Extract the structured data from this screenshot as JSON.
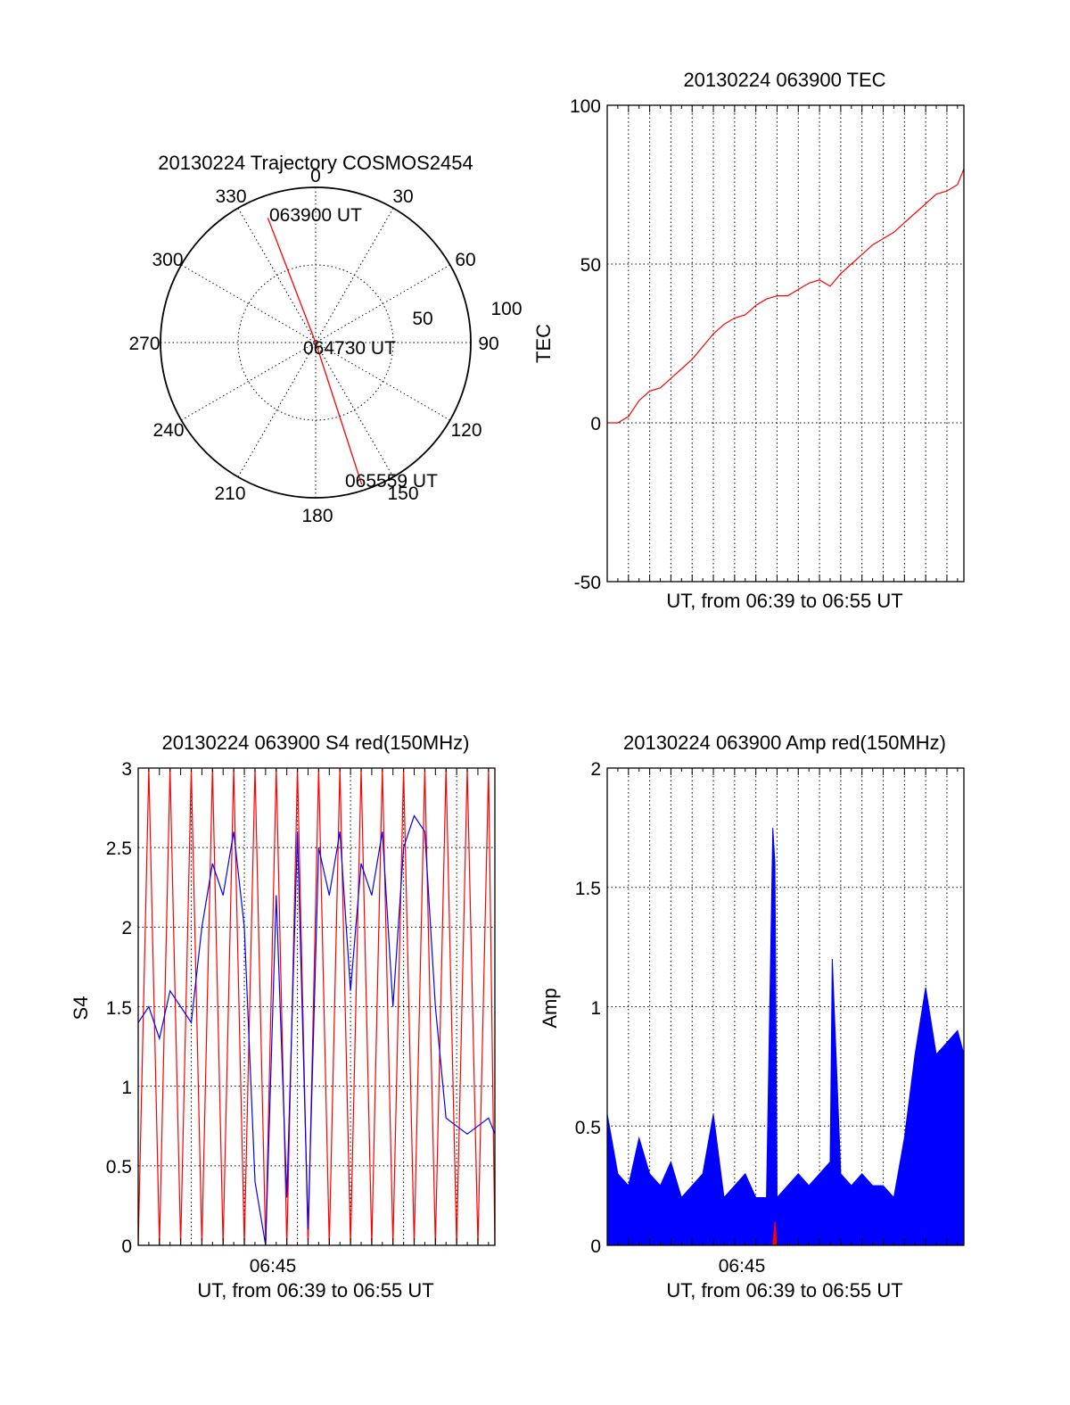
{
  "colors": {
    "red": "#ff0000",
    "blue": "#0000ff",
    "axis": "#000000",
    "background": "#ffffff"
  },
  "chart_data": [
    {
      "id": "trajectory",
      "type": "polar-trajectory",
      "title": "20130224 Trajectory COSMOS2454",
      "azimuth_labels": [
        "0",
        "30",
        "60",
        "90",
        "120",
        "150",
        "180",
        "210",
        "240",
        "270",
        "300",
        "330"
      ],
      "elevation_ring_labels": [
        "50",
        "100"
      ],
      "series": [
        {
          "color": "red",
          "points": [
            {
              "az": 339,
              "r": 86,
              "label": "063900 UT"
            },
            {
              "az": 0,
              "r": 0,
              "label": "064730 UT"
            },
            {
              "az": 162,
              "r": 96,
              "label": "065559 UT"
            }
          ]
        }
      ],
      "grid": true
    },
    {
      "id": "tec",
      "type": "line",
      "title": "20130224 063900 TEC",
      "xlabel": "UT, from 06:39 to 06:55 UT",
      "ylabel": "TEC",
      "xlim": [
        0,
        16.8
      ],
      "ylim": [
        -50,
        100
      ],
      "yticks": [
        "100",
        "50",
        "0",
        "-50"
      ],
      "grid": true,
      "series": [
        {
          "color": "red",
          "x": [
            0,
            0.5,
            1,
            1.5,
            2,
            2.5,
            3,
            3.5,
            4,
            4.5,
            5,
            5.5,
            6,
            6.5,
            7,
            7.5,
            8,
            8.5,
            9,
            9.5,
            10,
            10.5,
            11,
            11.5,
            12,
            12.5,
            13,
            13.5,
            14,
            14.5,
            15,
            15.5,
            16,
            16.5,
            16.8
          ],
          "y": [
            0,
            0,
            2,
            7,
            10,
            11,
            14,
            17,
            20,
            24,
            28,
            31,
            33,
            34,
            37,
            39,
            40,
            40,
            42,
            44,
            45,
            43,
            47,
            50,
            53,
            56,
            58,
            60,
            63,
            66,
            69,
            72,
            73,
            75,
            80
          ]
        }
      ]
    },
    {
      "id": "s4",
      "type": "line",
      "title": "20130224 063900 S4 red(150MHz)",
      "xlabel": "UT, from 06:39 to 06:55 UT",
      "ylabel": "S4",
      "xlim": [
        0,
        16.8
      ],
      "ylim": [
        0,
        3
      ],
      "xticks": [
        {
          "x": 6.5,
          "label": "06:45"
        }
      ],
      "yticks": [
        "3",
        "2.5",
        "2",
        "1.5",
        "1",
        "0.5",
        "0"
      ],
      "grid": true,
      "series": [
        {
          "color": "red",
          "x": [
            0,
            0.5,
            1,
            1.5,
            2,
            2.5,
            3,
            3.5,
            4,
            4.5,
            5,
            5.5,
            6,
            6.5,
            7,
            7.5,
            8,
            8.5,
            9,
            9.5,
            10,
            10.5,
            11,
            11.5,
            12,
            12.5,
            13,
            13.5,
            14,
            14.5,
            15,
            15.5,
            16,
            16.5,
            16.8
          ],
          "y": [
            0,
            3,
            0,
            3,
            0,
            3,
            0,
            3,
            0,
            3,
            0,
            3,
            0,
            3,
            0,
            3,
            0,
            3,
            0,
            3,
            0,
            3,
            0,
            3,
            0,
            3,
            0,
            3,
            0,
            3,
            0,
            3,
            0,
            3,
            0
          ]
        },
        {
          "color": "blue",
          "x": [
            0,
            0.5,
            1,
            1.5,
            2,
            2.5,
            3,
            3.5,
            4,
            4.5,
            5,
            5.5,
            6,
            6.5,
            7,
            7.5,
            8,
            8.5,
            9,
            9.5,
            10,
            10.5,
            11,
            11.5,
            12,
            12.5,
            13,
            13.5,
            14,
            14.5,
            15,
            15.5,
            16,
            16.5,
            16.8
          ],
          "y": [
            1.4,
            1.5,
            1.3,
            1.6,
            1.5,
            1.4,
            2.0,
            2.4,
            2.2,
            2.6,
            2.0,
            0.4,
            0.0,
            2.2,
            0.3,
            2.6,
            0.1,
            2.5,
            2.2,
            2.6,
            1.6,
            2.4,
            2.2,
            2.6,
            1.5,
            2.5,
            2.7,
            2.6,
            1.5,
            0.8,
            0.75,
            0.7,
            0.75,
            0.8,
            0.7
          ]
        }
      ]
    },
    {
      "id": "amp",
      "type": "line",
      "title": "20130224 063900 Amp red(150MHz)",
      "xlabel": "UT, from 06:39 to 06:55 UT",
      "ylabel": "Amp",
      "xlim": [
        0,
        16.8
      ],
      "ylim": [
        0,
        2
      ],
      "xticks": [
        {
          "x": 6.5,
          "label": "06:45"
        }
      ],
      "yticks": [
        "2",
        "1.5",
        "1",
        "0.5",
        "0"
      ],
      "grid": true,
      "series": [
        {
          "color": "blue",
          "x": [
            0,
            0.5,
            1,
            1.5,
            2,
            2.5,
            3,
            3.5,
            4,
            4.5,
            5,
            5.5,
            6,
            6.5,
            7,
            7.5,
            7.8,
            7.9,
            8,
            8.5,
            9,
            9.5,
            10,
            10.5,
            10.6,
            11,
            11.5,
            12,
            12.5,
            13,
            13.5,
            14,
            14.5,
            15,
            15.5,
            16,
            16.5,
            16.8
          ],
          "y": [
            0.55,
            0.3,
            0.25,
            0.45,
            0.3,
            0.25,
            0.35,
            0.2,
            0.25,
            0.3,
            0.55,
            0.2,
            0.25,
            0.3,
            0.2,
            0.2,
            1.75,
            1.6,
            0.2,
            0.25,
            0.3,
            0.25,
            0.3,
            0.35,
            1.2,
            0.3,
            0.25,
            0.3,
            0.25,
            0.25,
            0.2,
            0.45,
            0.8,
            1.08,
            0.8,
            0.85,
            0.9,
            0.8
          ]
        },
        {
          "color": "red",
          "x": [
            7.8,
            7.9,
            8
          ],
          "y": [
            0.0,
            0.1,
            0.0
          ]
        }
      ]
    }
  ]
}
